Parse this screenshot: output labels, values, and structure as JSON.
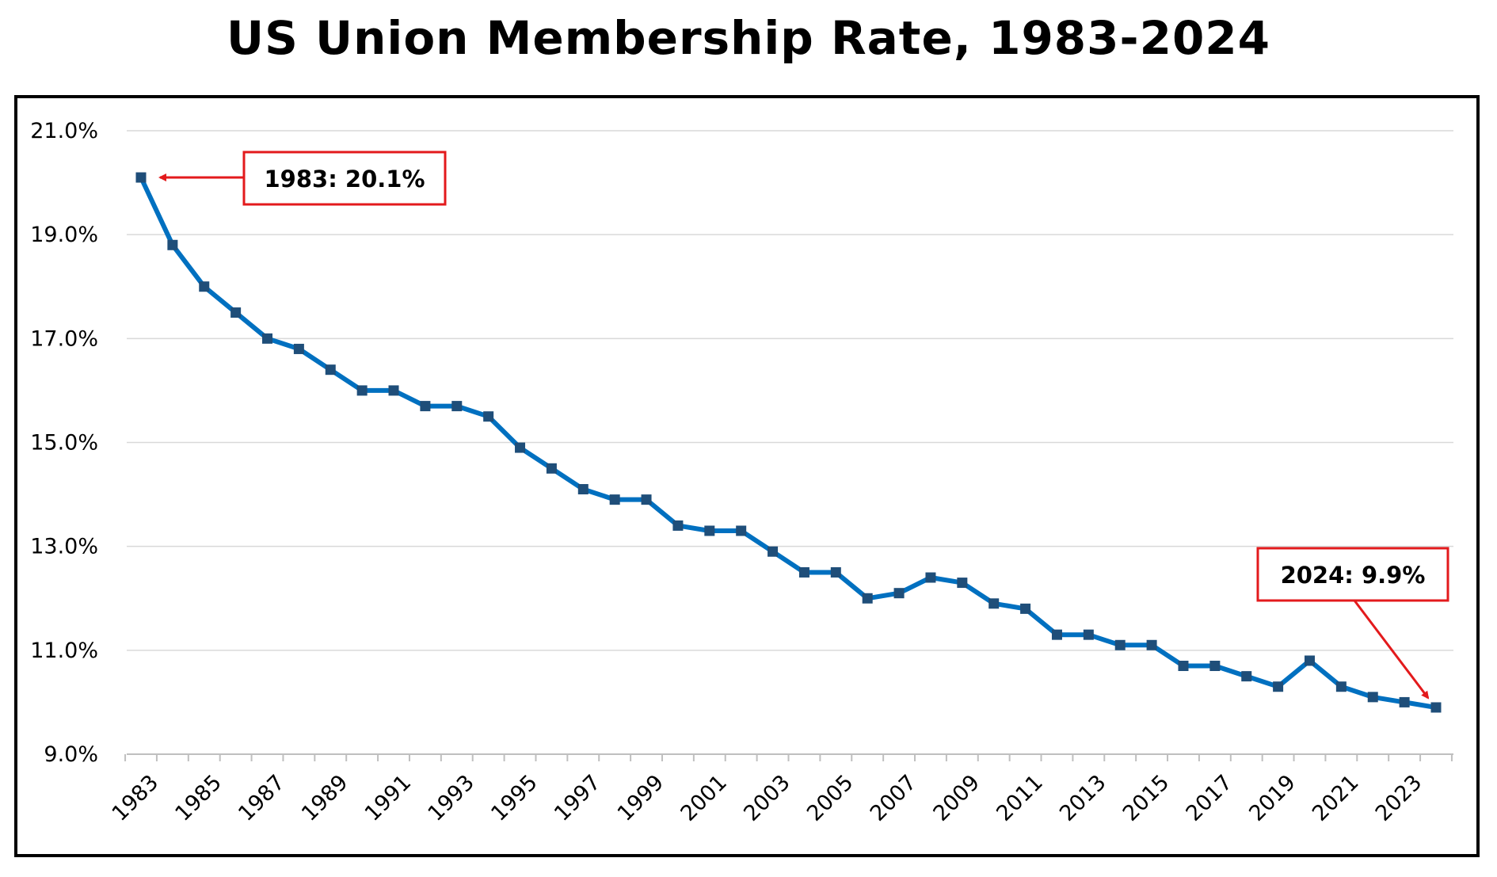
{
  "chart_data": {
    "type": "line",
    "title": "US Union Membership Rate, 1983-2024",
    "xlabel": "",
    "ylabel": "",
    "ylim": [
      9.0,
      21.0
    ],
    "yticks": [
      "9.0%",
      "11.0%",
      "13.0%",
      "15.0%",
      "17.0%",
      "19.0%",
      "21.0%"
    ],
    "ytick_values": [
      9,
      11,
      13,
      15,
      17,
      19,
      21
    ],
    "xtick_labels": [
      "1983",
      "1985",
      "1987",
      "1989",
      "1991",
      "1993",
      "1995",
      "1997",
      "1999",
      "2001",
      "2003",
      "2005",
      "2007",
      "2009",
      "2011",
      "2013",
      "2015",
      "2017",
      "2019",
      "2021",
      "2023"
    ],
    "grid": true,
    "color": "#0070C0",
    "x": [
      1983,
      1984,
      1985,
      1986,
      1987,
      1988,
      1989,
      1990,
      1991,
      1992,
      1993,
      1994,
      1995,
      1996,
      1997,
      1998,
      1999,
      2000,
      2001,
      2002,
      2003,
      2004,
      2005,
      2006,
      2007,
      2008,
      2009,
      2010,
      2011,
      2012,
      2013,
      2014,
      2015,
      2016,
      2017,
      2018,
      2019,
      2020,
      2021,
      2022,
      2023,
      2024
    ],
    "values": [
      20.1,
      18.8,
      18.0,
      17.5,
      17.0,
      16.8,
      16.4,
      16.0,
      16.0,
      15.7,
      15.7,
      15.5,
      14.9,
      14.5,
      14.1,
      13.9,
      13.9,
      13.4,
      13.3,
      13.3,
      12.9,
      12.5,
      12.5,
      12.0,
      12.1,
      12.4,
      12.3,
      11.9,
      11.8,
      11.3,
      11.3,
      11.1,
      11.1,
      10.7,
      10.7,
      10.5,
      10.3,
      10.8,
      10.3,
      10.1,
      10.0,
      9.9
    ],
    "annotations": [
      {
        "text": "1983: 20.1%",
        "x": 1983,
        "y": 20.1,
        "color": "#E31A1C"
      },
      {
        "text": "2024: 9.9%",
        "x": 2024,
        "y": 9.9,
        "color": "#E31A1C"
      }
    ]
  }
}
